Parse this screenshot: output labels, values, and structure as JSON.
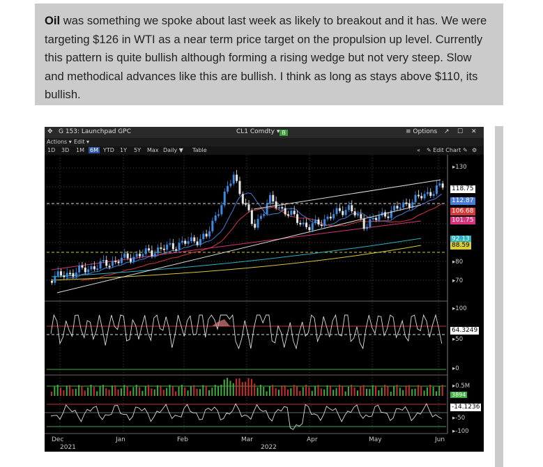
{
  "article": {
    "lead": "Oil",
    "text": " was something we spoke about last week as likely to breakout and it has. We were targeting $126 in WTI as a near term price target on the propulsion up level. Currently this pattern is quite bullish although forming a rising wedge but not very steep. Slow and methodical advances like this are bullish. I think as long as stays above $110, its bullish."
  },
  "terminal": {
    "title": "G 153: Launchpad GPC",
    "ticker": "CL1 Comdty",
    "ticker_badge": "B",
    "options_label": "≡ Options",
    "actions_label": "Actions ▾",
    "edit_label": "Edit ▾",
    "periods": [
      "1D",
      "3D",
      "1M",
      "6M",
      "YTD",
      "1Y",
      "5Y",
      "Max"
    ],
    "active_period": "6M",
    "interval_label": "Daily ▼",
    "table_label": "Table",
    "edit_chart_label": "Edit Chart",
    "price_tags": [
      {
        "value": "118.75",
        "bg": "#ffffff",
        "fg": "#000000"
      },
      {
        "value": "112.87",
        "bg": "#4a7bd6",
        "fg": "#ffffff"
      },
      {
        "value": "106.68",
        "bg": "#d43a3a",
        "fg": "#ffffff"
      },
      {
        "value": "101.75",
        "bg": "#d8337e",
        "fg": "#ffffff"
      },
      {
        "value": "92.13",
        "bg": "#2bb3c0",
        "fg": "#ffffff"
      },
      {
        "value": "88.59",
        "bg": "#d9cb3a",
        "fg": "#000000"
      }
    ],
    "price_ticks": [
      "130",
      "80",
      "70"
    ],
    "rsi_tag": "64.3249",
    "rsi_ticks": [
      "100",
      "50",
      "0"
    ],
    "vol_tags": [
      "0.5M",
      "3894"
    ],
    "osc_tag": "-14.1236",
    "osc_ticks": [
      "-50",
      "-100"
    ],
    "x_months": [
      "Dec",
      "Jan",
      "Feb",
      "Mar",
      "Apr",
      "May",
      "Jun"
    ],
    "x_years": [
      "2021",
      "2022"
    ]
  },
  "colors": {
    "candle_up": "#3d8be0",
    "candle_down": "#e8e8e8",
    "ma_red": "#d43a3a",
    "ma_pink": "#d8337e",
    "ma_cyan": "#2bb3c0",
    "ma_yellow": "#d9cb3a",
    "vol_up": "#3fae3f",
    "vol_down": "#c83030"
  }
}
